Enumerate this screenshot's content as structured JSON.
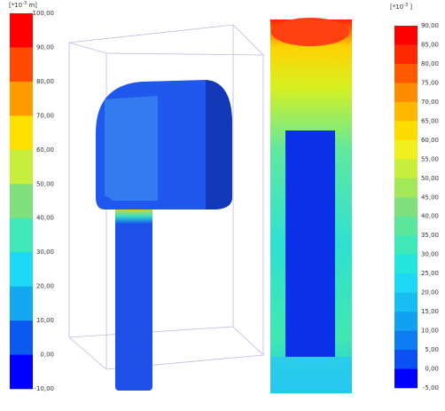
{
  "legends": [
    {
      "unit": {
        "prefix": "[*10",
        "exponent": "-3",
        "suffix": " m]"
      },
      "labels": [
        "100,00",
        "90,00",
        "80,00",
        "70,00",
        "60,00",
        "50,00",
        "40,00",
        "30,00",
        "20,00",
        "10,00",
        "0,00",
        "-10,00"
      ],
      "colors": [
        "#ff0000",
        "#ff4a00",
        "#ff9a00",
        "#ffe000",
        "#c8ee3c",
        "#80e07c",
        "#3ee8b8",
        "#1cd8f4",
        "#12a8f2",
        "#0a5af2",
        "#0000ff"
      ]
    },
    {
      "unit": {
        "prefix": "[*10",
        "exponent": "-3",
        "suffix": " ]"
      },
      "labels": [
        "90,00",
        "85,00",
        "80,00",
        "75,00",
        "70,00",
        "65,00",
        "60,00",
        "55,00",
        "50,00",
        "45,00",
        "40,00",
        "35,00",
        "30,00",
        "25,00",
        "20,00",
        "15,00",
        "10,00",
        "5,00",
        "0,00",
        "-5,00"
      ],
      "colors": [
        "#ff0000",
        "#ff2a00",
        "#ff5a00",
        "#ff8c00",
        "#ffb800",
        "#ffdc00",
        "#f0f020",
        "#c8ee3c",
        "#a4e85a",
        "#80e07c",
        "#5ce69c",
        "#3ee8b8",
        "#24e6dc",
        "#1cd8f4",
        "#16bef4",
        "#12a0f2",
        "#0e7cf2",
        "#0a50f2",
        "#0000ff"
      ]
    }
  ]
}
